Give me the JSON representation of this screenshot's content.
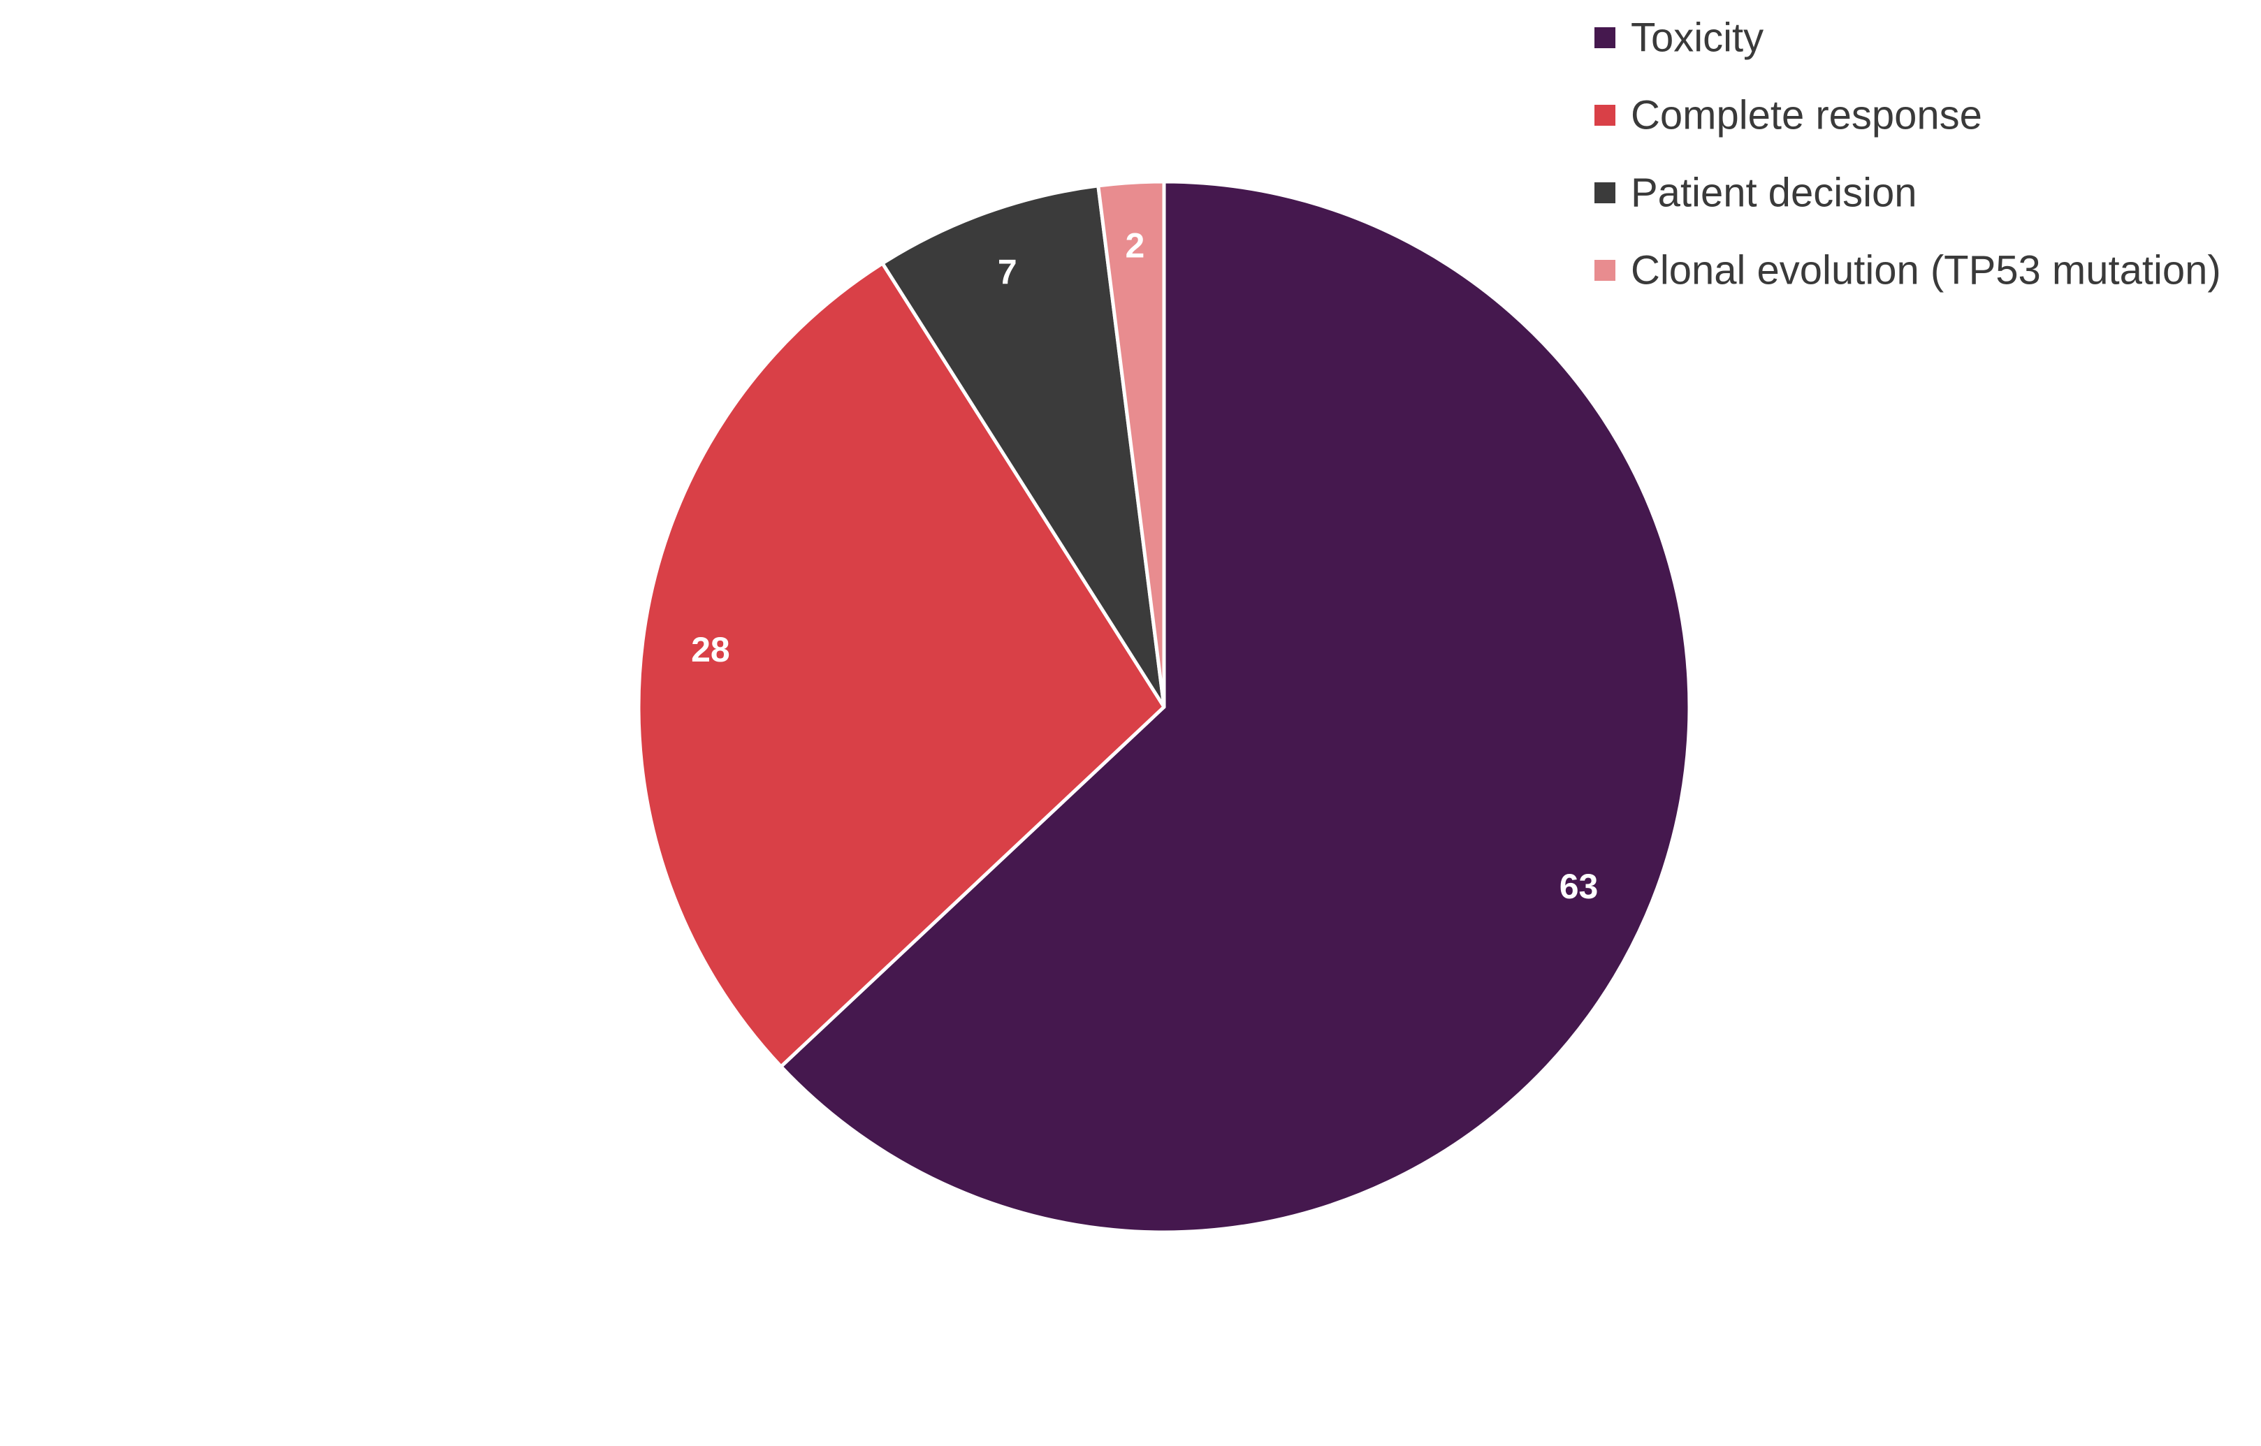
{
  "chart_data": {
    "type": "pie",
    "title": "",
    "categories": [
      "Toxicity",
      "Complete response",
      "Patient decision",
      "Clonal evolution (TP53 mutation)"
    ],
    "values": [
      63,
      28,
      7,
      2
    ],
    "data_labels": [
      "63",
      "28",
      "7",
      "2"
    ],
    "colors": [
      "#45184e",
      "#d94047",
      "#3b3b3b",
      "#e88c8f"
    ],
    "start_angle_deg": 0,
    "direction": "clockwise",
    "slice_border_color": "#ffffff",
    "legend": {
      "placement": "top-right",
      "entries": [
        "Toxicity",
        "Complete response",
        "Patient decision",
        "Clonal evolution (TP53 mutation)"
      ]
    }
  }
}
